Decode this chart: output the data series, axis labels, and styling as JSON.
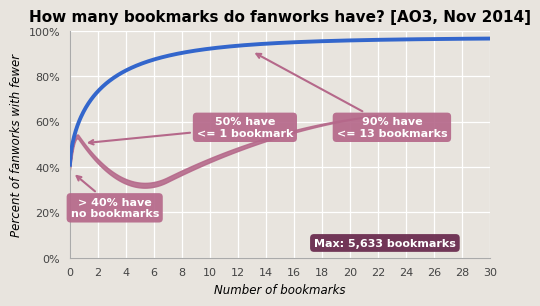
{
  "title": "How many bookmarks do fanworks have? [AO3, Nov 2014]",
  "xlabel": "Number of bookmarks",
  "ylabel": "Percent of fanworks with fewer",
  "xlim": [
    0,
    30
  ],
  "ylim": [
    0,
    1.0
  ],
  "yticks": [
    0.0,
    0.2,
    0.4,
    0.6,
    0.8,
    1.0
  ],
  "ytick_labels": [
    "0%",
    "20%",
    "40%",
    "60%",
    "80%",
    "100%"
  ],
  "xticks": [
    0,
    2,
    4,
    6,
    8,
    10,
    12,
    14,
    16,
    18,
    20,
    22,
    24,
    26,
    28,
    30
  ],
  "blue_color": "#3366cc",
  "pink_color": "#b5688a",
  "dark_pink_color": "#6b2d50",
  "bg_color": "#e8e4de",
  "title_fontsize": 11,
  "label_fontsize": 8.5,
  "tick_fontsize": 8,
  "ann1_text": "> 40% have\nno bookmarks",
  "ann2_text": "50% have\n<= 1 bookmark",
  "ann3_text": "90% have\n<= 13 bookmarks",
  "ann4_text": "Max: 5,633 bookmarks"
}
